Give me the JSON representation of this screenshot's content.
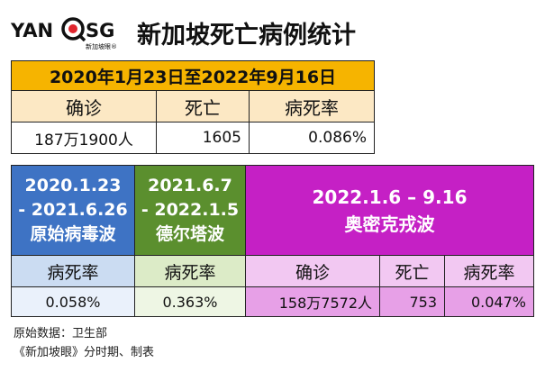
{
  "brand": {
    "left": "YAN",
    "right": "SG",
    "sub": "新加坡眼®"
  },
  "title": "新加坡死亡病例统计",
  "overall": {
    "period": "2020年1月23日至2022年9月16日",
    "headers": [
      "确诊",
      "死亡",
      "病死率"
    ],
    "values": [
      "187万1900人",
      "1605",
      "0.086%"
    ]
  },
  "waves": {
    "original": {
      "line1": "2020.1.23",
      "line2": "- 2021.6.26",
      "line3": "原始病毒波",
      "rate_label": "病死率",
      "rate": "0.058%"
    },
    "delta": {
      "line1": "2021.6.7",
      "line2": "- 2022.1.5",
      "line3": "德尔塔波",
      "rate_label": "病死率",
      "rate": "0.363%"
    },
    "omicron": {
      "line1": "2022.1.6 – 9.16",
      "line2": "奥密克戎波",
      "headers": [
        "确诊",
        "死亡",
        "病死率"
      ],
      "values": [
        "158万7572人",
        "753",
        "0.047%"
      ]
    }
  },
  "footer": {
    "source": "原始数据：卫生部",
    "credit": "《新加坡眼》分时期、制表"
  },
  "colors": {
    "orange": "#f6b400",
    "blue": "#3e73c4",
    "green": "#5b8f2e",
    "purple": "#c520c5"
  }
}
